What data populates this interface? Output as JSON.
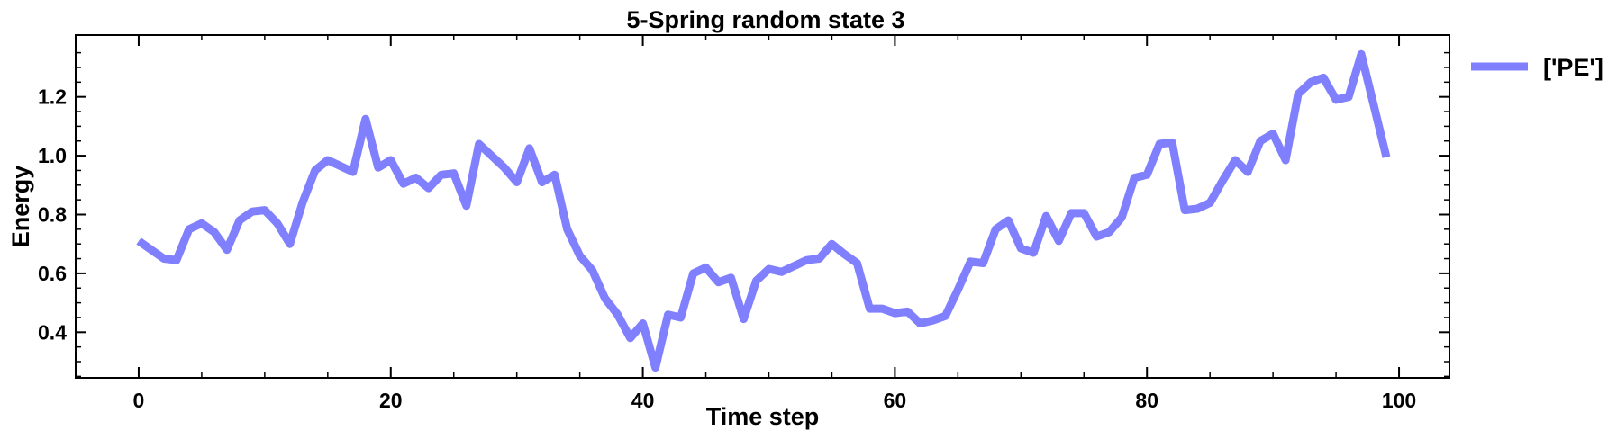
{
  "chart_data": {
    "type": "line",
    "title": "5-Spring random state 3",
    "xlabel": "Time step",
    "ylabel": "Energy",
    "xlim": [
      -5,
      104
    ],
    "ylim": [
      0.245,
      1.41
    ],
    "xticks": [
      0,
      20,
      40,
      60,
      80,
      100
    ],
    "xtick_labels": [
      "0",
      "20",
      "40",
      "60",
      "80",
      "100"
    ],
    "yticks": [
      0.4,
      0.6,
      0.8,
      1.0,
      1.2
    ],
    "ytick_labels": [
      "0.4",
      "0.6",
      "0.8",
      "1.0",
      "1.2"
    ],
    "grid": false,
    "legend_position": "outside-right",
    "series": [
      {
        "name": "['PE']",
        "color": "#8080ff",
        "x": [
          0,
          1,
          2,
          3,
          4,
          5,
          6,
          7,
          8,
          9,
          10,
          11,
          12,
          13,
          14,
          15,
          16,
          17,
          18,
          19,
          20,
          21,
          22,
          23,
          24,
          25,
          26,
          27,
          28,
          29,
          30,
          31,
          32,
          33,
          34,
          35,
          36,
          37,
          38,
          39,
          40,
          41,
          42,
          43,
          44,
          45,
          46,
          47,
          48,
          49,
          50,
          51,
          52,
          53,
          54,
          55,
          56,
          57,
          58,
          59,
          60,
          61,
          62,
          63,
          64,
          65,
          66,
          67,
          68,
          69,
          70,
          71,
          72,
          73,
          74,
          75,
          76,
          77,
          78,
          79,
          80,
          81,
          82,
          83,
          84,
          85,
          86,
          87,
          88,
          89,
          90,
          91,
          92,
          93,
          94,
          95,
          96,
          97,
          98,
          99
        ],
        "values": [
          0.71,
          0.68,
          0.65,
          0.645,
          0.75,
          0.77,
          0.74,
          0.68,
          0.78,
          0.81,
          0.815,
          0.77,
          0.7,
          0.84,
          0.95,
          0.985,
          0.965,
          0.945,
          1.125,
          0.96,
          0.985,
          0.905,
          0.925,
          0.89,
          0.935,
          0.94,
          0.83,
          1.04,
          1.0,
          0.96,
          0.91,
          1.025,
          0.91,
          0.935,
          0.75,
          0.66,
          0.61,
          0.515,
          0.46,
          0.38,
          0.43,
          0.28,
          0.46,
          0.45,
          0.6,
          0.62,
          0.57,
          0.585,
          0.445,
          0.575,
          0.615,
          0.605,
          0.625,
          0.645,
          0.65,
          0.7,
          0.665,
          0.635,
          0.48,
          0.48,
          0.465,
          0.47,
          0.43,
          0.44,
          0.455,
          0.545,
          0.64,
          0.635,
          0.75,
          0.78,
          0.685,
          0.67,
          0.795,
          0.71,
          0.805,
          0.805,
          0.725,
          0.74,
          0.79,
          0.925,
          0.935,
          1.04,
          1.045,
          0.815,
          0.82,
          0.84,
          0.915,
          0.985,
          0.945,
          1.05,
          1.075,
          0.985,
          1.21,
          1.25,
          1.265,
          1.19,
          1.2,
          1.345,
          1.17,
          0.995
        ]
      }
    ]
  }
}
